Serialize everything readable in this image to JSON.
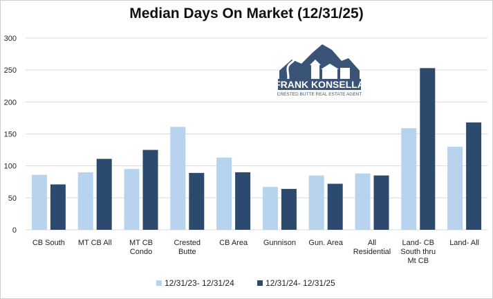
{
  "colors": {
    "series1": "#b7d3ee",
    "series2": "#2c4a6e",
    "grid": "#d9d9d9",
    "logo": "#3a5478"
  },
  "logo": {
    "name": "FRANK KONSELLA",
    "tagline": "CRESTED BUTTE REAL ESTATE AGENT"
  },
  "chart_data": {
    "type": "bar",
    "title": "Median Days On Market (12/31/25)",
    "xlabel": "",
    "ylabel": "",
    "ylim": [
      0,
      300
    ],
    "yticks": [
      0,
      50,
      100,
      150,
      200,
      250,
      300
    ],
    "grid": true,
    "legend_position": "bottom",
    "categories": [
      [
        "CB South"
      ],
      [
        "MT CB All"
      ],
      [
        "MT CB",
        "Condo"
      ],
      [
        "Crested",
        "Butte"
      ],
      [
        "CB Area"
      ],
      [
        "Gunnison"
      ],
      [
        "Gun. Area"
      ],
      [
        "All",
        "Residential"
      ],
      [
        "Land- CB",
        "South thru",
        "Mt CB"
      ],
      [
        "Land- All"
      ]
    ],
    "series": [
      {
        "name": "12/31/23- 12/31/24",
        "values": [
          86,
          90,
          95,
          161,
          113,
          67,
          85,
          88,
          159,
          130
        ]
      },
      {
        "name": "12/31/24- 12/31/25",
        "values": [
          71,
          111,
          125,
          89,
          90,
          64,
          72,
          85,
          253,
          168
        ]
      }
    ]
  }
}
